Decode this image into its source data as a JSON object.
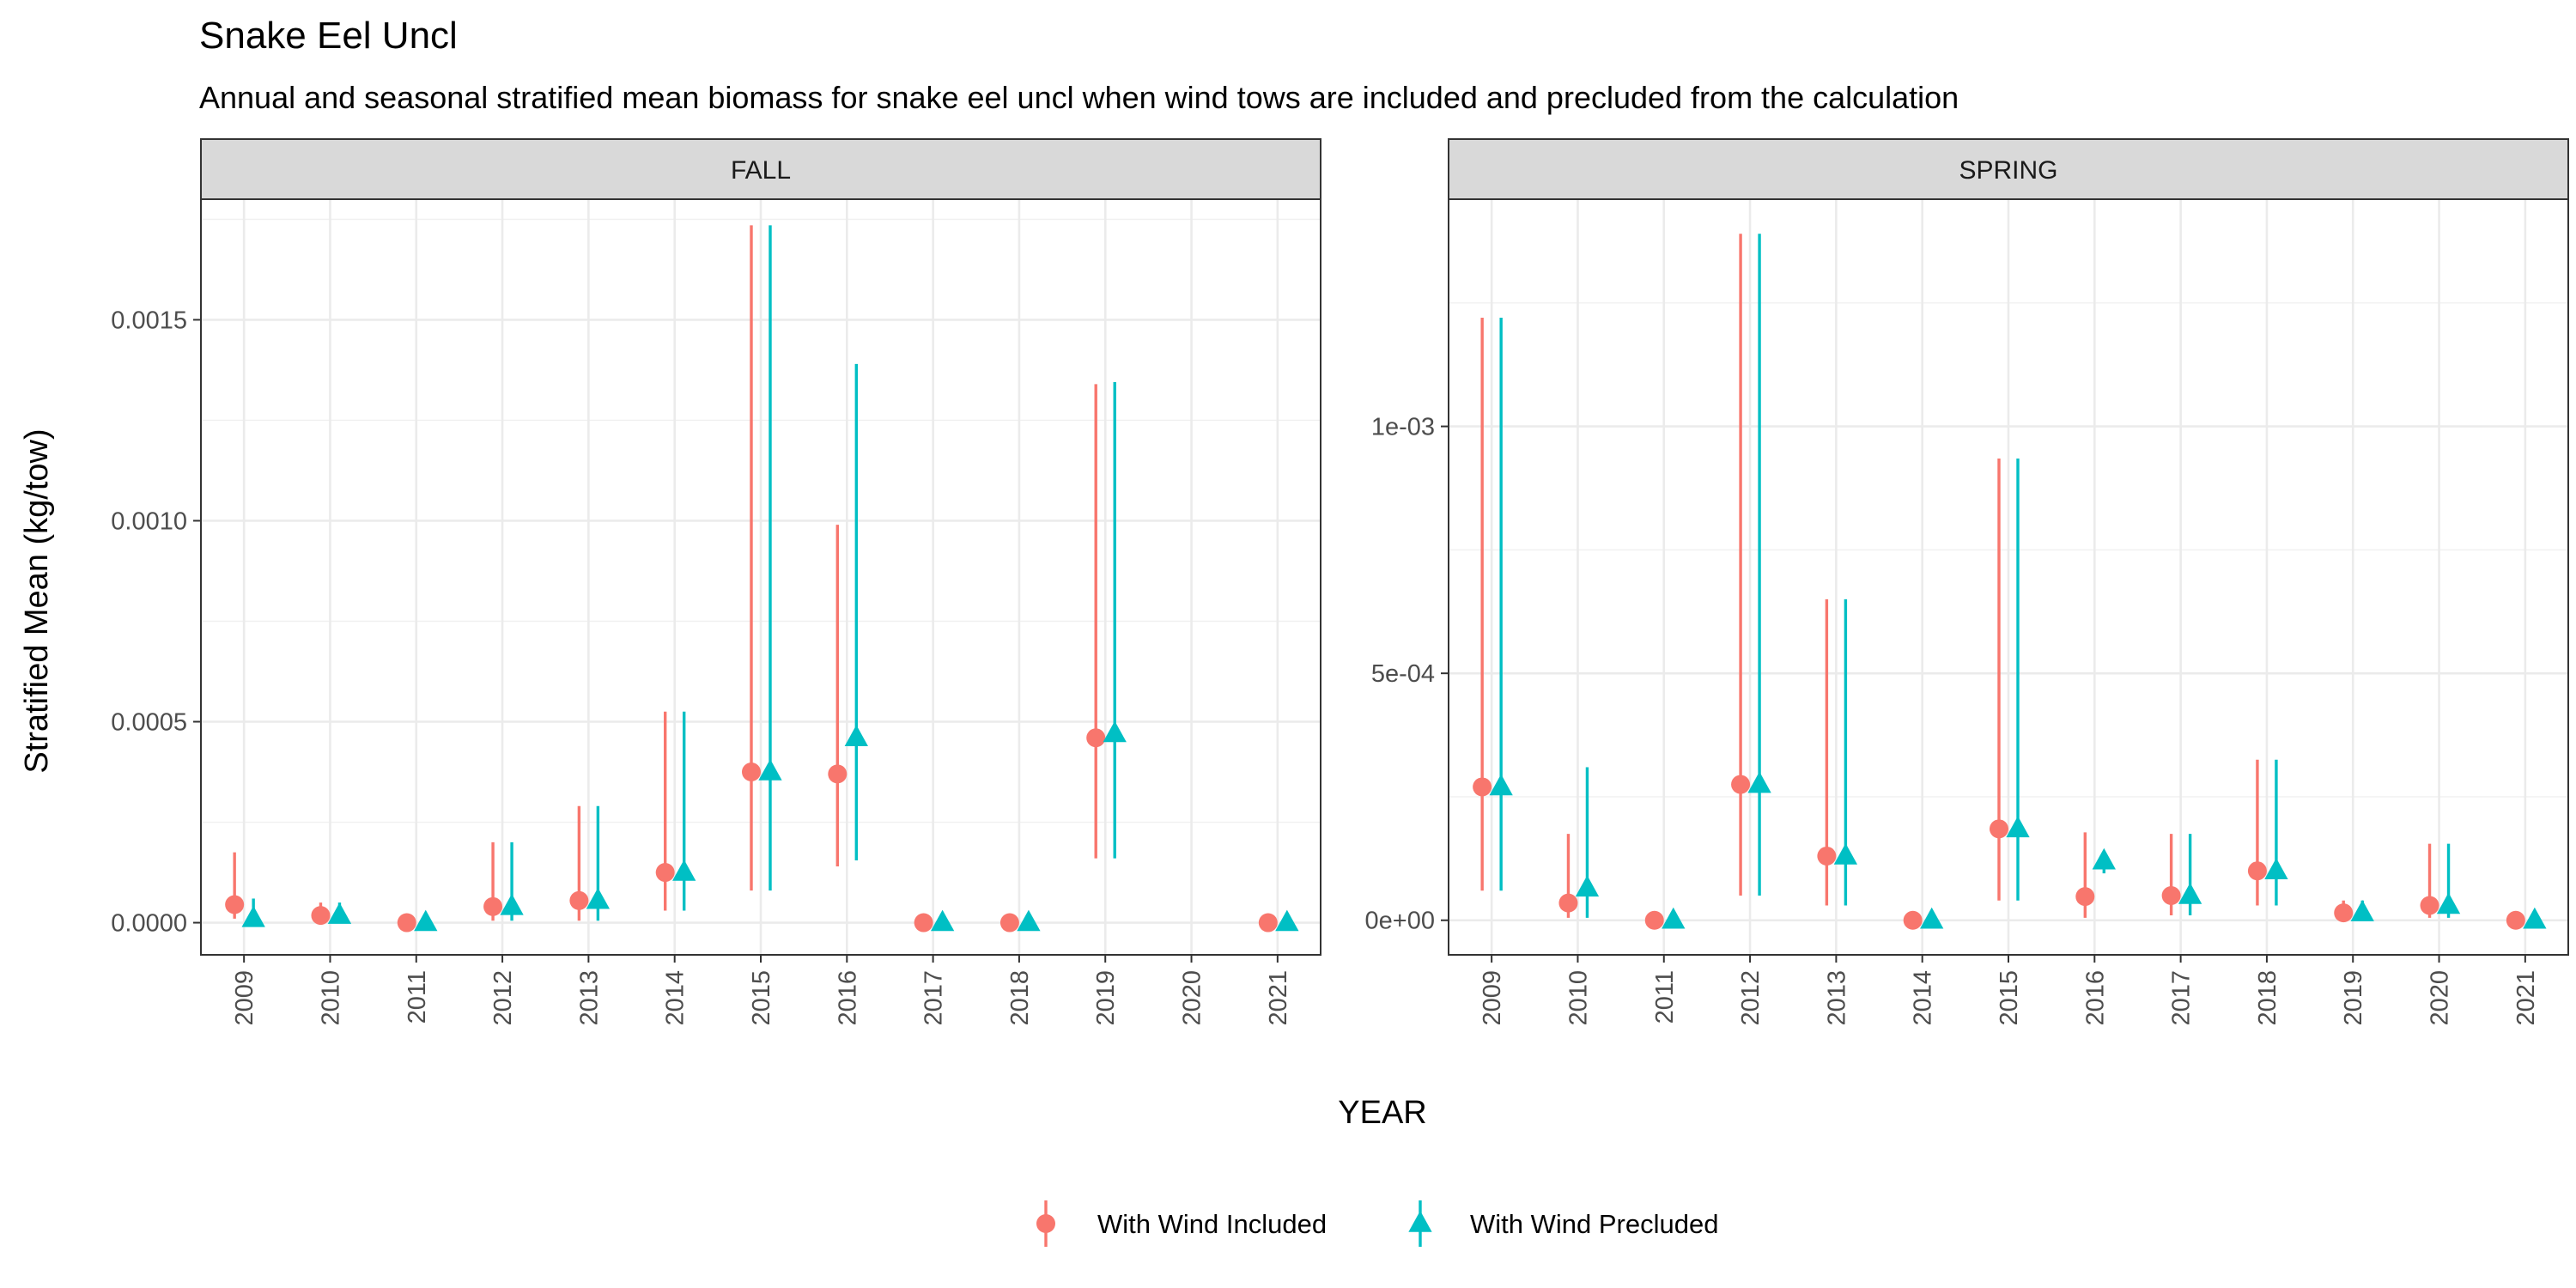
{
  "chart_data": {
    "type": "scatter",
    "title": "Snake Eel Uncl",
    "subtitle": "Annual and seasonal stratified mean biomass for snake eel uncl when wind tows are included and precluded from the calculation",
    "xlabel": "YEAR",
    "ylabel": "Stratified Mean (kg/tow)",
    "legend_position": "bottom",
    "grid": true,
    "series_names": [
      "With Wind Included",
      "With Wind Precluded"
    ],
    "series_colors": [
      "#F8766D",
      "#00BFC4"
    ],
    "series_shapes": [
      "circle",
      "triangle"
    ],
    "panels": [
      {
        "name": "FALL",
        "years": [
          "2009",
          "2010",
          "2011",
          "2012",
          "2013",
          "2014",
          "2015",
          "2016",
          "2017",
          "2018",
          "2019",
          "2020",
          "2021"
        ],
        "ylim": [
          -8e-05,
          0.0018
        ],
        "yticks": [
          0,
          0.0005,
          0.001,
          0.0015
        ],
        "ytick_labels": [
          "0.0000",
          "0.0005",
          "0.0010",
          "0.0015"
        ],
        "series": [
          {
            "name": "With Wind Included",
            "values": [
              4.5e-05,
              1.8e-05,
              0,
              4e-05,
              5.5e-05,
              0.000125,
              0.000375,
              0.00037,
              0,
              0,
              0.00046,
              null,
              0
            ],
            "lower": [
              1e-05,
              5e-06,
              0,
              5e-06,
              5e-06,
              3e-05,
              8e-05,
              0.00014,
              0,
              0,
              0.00016,
              null,
              0
            ],
            "upper": [
              0.000175,
              5e-05,
              0,
              0.0002,
              0.00029,
              0.000525,
              0.001735,
              0.00099,
              0,
              0,
              0.00134,
              null,
              0
            ]
          },
          {
            "name": "With Wind Precluded",
            "values": [
              1e-05,
              1.8e-05,
              0,
              4e-05,
              5.5e-05,
              0.000125,
              0.000375,
              0.00046,
              0,
              0,
              0.00047,
              null,
              0
            ],
            "lower": [
              5e-06,
              5e-06,
              0,
              5e-06,
              5e-06,
              3e-05,
              8e-05,
              0.000155,
              0,
              0,
              0.00016,
              null,
              0
            ],
            "upper": [
              6e-05,
              5e-05,
              0,
              0.0002,
              0.00029,
              0.000525,
              0.001735,
              0.00139,
              0,
              0,
              0.001345,
              null,
              0
            ]
          }
        ]
      },
      {
        "name": "SPRING",
        "years": [
          "2009",
          "2010",
          "2011",
          "2012",
          "2013",
          "2014",
          "2015",
          "2016",
          "2017",
          "2018",
          "2019",
          "2020",
          "2021"
        ],
        "ylim": [
          -7e-05,
          0.00146
        ],
        "yticks": [
          0,
          0.0005,
          0.001
        ],
        "ytick_labels": [
          "0e+00",
          "5e-04",
          "1e-03"
        ],
        "series": [
          {
            "name": "With Wind Included",
            "values": [
              0.00027,
              3.5e-05,
              0,
              0.000275,
              0.00013,
              0,
              0.000185,
              4.8e-05,
              5e-05,
              0.0001,
              1.5e-05,
              3e-05,
              0
            ],
            "lower": [
              6e-05,
              5e-06,
              0,
              5e-05,
              3e-05,
              0,
              4e-05,
              5e-06,
              1e-05,
              3e-05,
              2e-06,
              5e-06,
              0
            ],
            "upper": [
              0.00122,
              0.000175,
              0,
              0.00139,
              0.00065,
              0,
              0.000935,
              0.000178,
              0.000175,
              0.000325,
              4e-05,
              0.000155,
              0
            ]
          },
          {
            "name": "With Wind Precluded",
            "values": [
              0.00027,
              6.5e-05,
              0,
              0.000275,
              0.00013,
              0,
              0.000185,
              0.00012,
              5e-05,
              0.0001,
              1.5e-05,
              3e-05,
              0
            ],
            "lower": [
              6e-05,
              5e-06,
              0,
              5e-05,
              3e-05,
              0,
              4e-05,
              9.5e-05,
              1e-05,
              3e-05,
              2e-06,
              5e-06,
              0
            ],
            "upper": [
              0.00122,
              0.00031,
              0,
              0.00139,
              0.00065,
              0,
              0.000935,
              0.00013,
              0.000175,
              0.000325,
              4e-05,
              0.000155,
              0
            ]
          }
        ]
      }
    ]
  }
}
